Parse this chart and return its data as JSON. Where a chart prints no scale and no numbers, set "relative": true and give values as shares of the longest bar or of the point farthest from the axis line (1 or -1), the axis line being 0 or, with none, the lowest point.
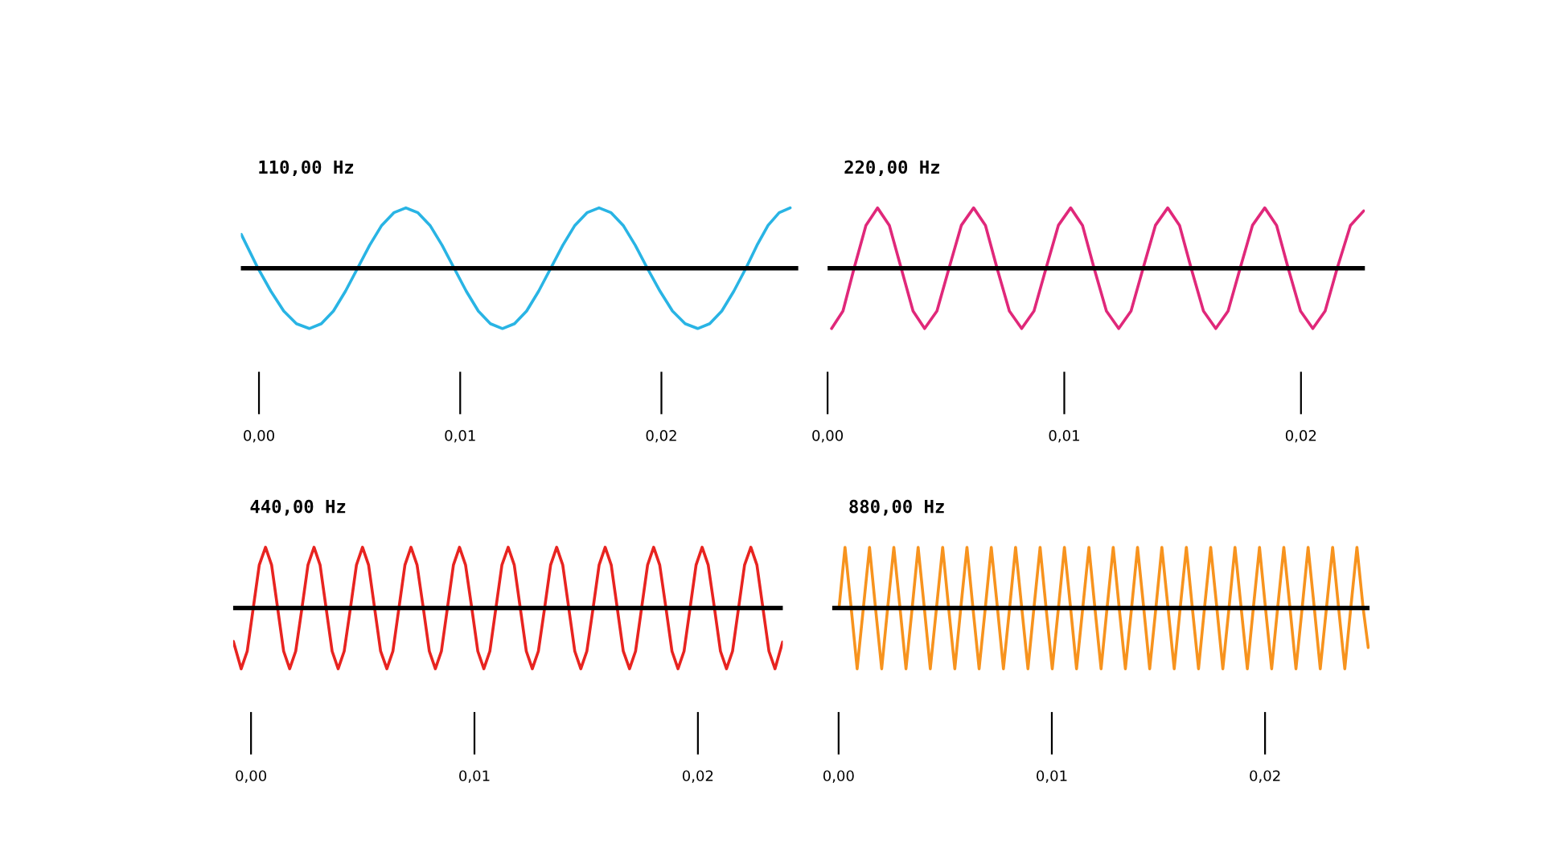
{
  "chart_data": [
    {
      "type": "line",
      "title": "110,00 Hz",
      "relative": true,
      "tick_labels": "x",
      "color": "#29b4e4",
      "xlim": [
        -0.0009,
        0.0268
      ],
      "xticks": [
        {
          "value": 0,
          "label": "0,00"
        },
        {
          "value": 0.01,
          "label": "0,01"
        },
        {
          "value": 0.02,
          "label": "0,02"
        }
      ],
      "ref_lines": [
        {
          "axis": "y",
          "value": 0,
          "color": "#000000"
        }
      ],
      "x": [
        -0.00088,
        -5e-05,
        0.00059,
        0.00123,
        0.00186,
        0.0025,
        0.0031,
        0.0037,
        0.0043,
        0.0049,
        0.0055,
        0.0061,
        0.0067,
        0.0073,
        0.0079,
        0.0085,
        0.0091,
        0.0097,
        0.0103,
        0.0109,
        0.0115,
        0.0121,
        0.0127,
        0.0133,
        0.0139,
        0.0145,
        0.0151,
        0.0157,
        0.0163,
        0.0169,
        0.0175,
        0.0181,
        0.0187,
        0.0193,
        0.01993,
        0.02055,
        0.02118,
        0.0218,
        0.0224,
        0.023,
        0.0236,
        0.0242,
        0.02475,
        0.0253,
        0.02585,
        0.0264
      ],
      "values": [
        0.56,
        0,
        -0.38,
        -0.71,
        -0.92,
        -1,
        -0.92,
        -0.71,
        -0.38,
        0,
        0.38,
        0.71,
        0.92,
        1,
        0.92,
        0.71,
        0.38,
        0,
        -0.38,
        -0.71,
        -0.92,
        -1,
        -0.92,
        -0.71,
        -0.38,
        0,
        0.38,
        0.71,
        0.92,
        1,
        0.92,
        0.71,
        0.38,
        0,
        -0.38,
        -0.71,
        -0.92,
        -1,
        -0.92,
        -0.71,
        -0.38,
        0,
        0.38,
        0.71,
        0.92,
        1
      ]
    },
    {
      "type": "line",
      "title": "220,00 Hz",
      "relative": true,
      "tick_labels": "x",
      "color": "#e0287a",
      "xlim": [
        0,
        0.0227
      ],
      "xticks": [
        {
          "value": 0,
          "label": "0,00"
        },
        {
          "value": 0.01,
          "label": "0,01"
        },
        {
          "value": 0.02,
          "label": "0,02"
        }
      ],
      "ref_lines": [
        {
          "axis": "y",
          "value": 0,
          "color": "#000000"
        }
      ],
      "x": [
        0.00017,
        0.00065,
        0.00112,
        0.00162,
        0.00211,
        0.00261,
        0.00311,
        0.00361,
        0.0041,
        0.00462,
        0.00513,
        0.00565,
        0.00617,
        0.00667,
        0.00716,
        0.00768,
        0.0082,
        0.00872,
        0.00923,
        0.00975,
        0.01027,
        0.01077,
        0.01126,
        0.01178,
        0.0123,
        0.01282,
        0.01333,
        0.01385,
        0.01437,
        0.01487,
        0.01536,
        0.01588,
        0.0164,
        0.01692,
        0.01743,
        0.01795,
        0.01847,
        0.01897,
        0.01946,
        0.01998,
        0.0205,
        0.02102,
        0.02153,
        0.02209,
        0.02265
      ],
      "values": [
        -1,
        -0.71,
        0,
        0.71,
        1,
        0.71,
        0,
        -0.71,
        -1,
        -0.71,
        0,
        0.71,
        1,
        0.71,
        0,
        -0.71,
        -1,
        -0.71,
        0,
        0.71,
        1,
        0.71,
        0,
        -0.71,
        -1,
        -0.71,
        0,
        0.71,
        1,
        0.71,
        0,
        -0.71,
        -1,
        -0.71,
        0,
        0.71,
        1,
        0.71,
        0,
        -0.71,
        -1,
        -0.71,
        0,
        0.71,
        0.95
      ]
    },
    {
      "type": "line",
      "title": "440,00 Hz",
      "relative": true,
      "tick_labels": "x",
      "color": "#e82420",
      "xlim": [
        -0.0008,
        0.0238
      ],
      "xticks": [
        {
          "value": 0,
          "label": "0,00"
        },
        {
          "value": 0.01,
          "label": "0,01"
        },
        {
          "value": 0.02,
          "label": "0,02"
        }
      ],
      "ref_lines": [
        {
          "axis": "y",
          "value": 0,
          "color": "#000000"
        }
      ],
      "x": [
        -0.00079,
        -0.00044,
        -0.00017,
        0.0001,
        0.00037,
        0.00065,
        0.00092,
        0.00119,
        0.00146,
        0.00173,
        0.002,
        0.00228,
        0.00255,
        0.00282,
        0.00309,
        0.00336,
        0.00363,
        0.0039,
        0.00417,
        0.00445,
        0.00472,
        0.00499,
        0.00526,
        0.00553,
        0.0058,
        0.00608,
        0.00635,
        0.00662,
        0.00689,
        0.00716,
        0.00743,
        0.00771,
        0.00798,
        0.00825,
        0.00852,
        0.00879,
        0.00906,
        0.00933,
        0.0096,
        0.00988,
        0.01015,
        0.01042,
        0.01069,
        0.01096,
        0.01123,
        0.01151,
        0.01178,
        0.01205,
        0.01232,
        0.01259,
        0.01286,
        0.01314,
        0.01341,
        0.01368,
        0.01395,
        0.01422,
        0.01449,
        0.01476,
        0.01503,
        0.01531,
        0.01558,
        0.01585,
        0.01612,
        0.01639,
        0.01666,
        0.01694,
        0.01721,
        0.01748,
        0.01775,
        0.01802,
        0.01829,
        0.01857,
        0.01884,
        0.01911,
        0.01938,
        0.01965,
        0.01992,
        0.02019,
        0.02046,
        0.02074,
        0.02101,
        0.02128,
        0.02155,
        0.02182,
        0.02209,
        0.02237,
        0.02264,
        0.02291,
        0.02318,
        0.02345,
        0.02379
      ],
      "values": [
        -0.55,
        -1,
        -0.71,
        0,
        0.71,
        1,
        0.71,
        0,
        -0.71,
        -1,
        -0.71,
        0,
        0.71,
        1,
        0.71,
        0,
        -0.71,
        -1,
        -0.71,
        0,
        0.71,
        1,
        0.71,
        0,
        -0.71,
        -1,
        -0.71,
        0,
        0.71,
        1,
        0.71,
        0,
        -0.71,
        -1,
        -0.71,
        0,
        0.71,
        1,
        0.71,
        0,
        -0.71,
        -1,
        -0.71,
        0,
        0.71,
        1,
        0.71,
        0,
        -0.71,
        -1,
        -0.71,
        0,
        0.71,
        1,
        0.71,
        0,
        -0.71,
        -1,
        -0.71,
        0,
        0.71,
        1,
        0.71,
        0,
        -0.71,
        -1,
        -0.71,
        0,
        0.71,
        1,
        0.71,
        0,
        -0.71,
        -1,
        -0.71,
        0,
        0.71,
        1,
        0.71,
        0,
        -0.71,
        -1,
        -0.71,
        0,
        0.71,
        1,
        0.71,
        0,
        -0.71,
        -1,
        -0.56
      ]
    },
    {
      "type": "line",
      "title": "880,00 Hz",
      "relative": true,
      "tick_labels": "x",
      "color": "#f7931e",
      "xlim": [
        -0.0003,
        0.0249
      ],
      "xticks": [
        {
          "value": 0,
          "label": "0,00"
        },
        {
          "value": 0.01,
          "label": "0,01"
        },
        {
          "value": 0.02,
          "label": "0,02"
        }
      ],
      "ref_lines": [
        {
          "axis": "y",
          "value": 0,
          "color": "#000000"
        }
      ],
      "x": [
        2e-05,
        0.0003,
        0.00059,
        0.00087,
        0.00116,
        0.00145,
        0.00173,
        0.00202,
        0.0023,
        0.00259,
        0.00288,
        0.00316,
        0.00345,
        0.00373,
        0.00402,
        0.0043,
        0.00459,
        0.00488,
        0.00516,
        0.00545,
        0.00573,
        0.00602,
        0.0063,
        0.00659,
        0.00688,
        0.00716,
        0.00745,
        0.00773,
        0.00802,
        0.0083,
        0.00859,
        0.00888,
        0.00916,
        0.00945,
        0.00973,
        0.01002,
        0.01031,
        0.01059,
        0.01088,
        0.01116,
        0.01145,
        0.01174,
        0.01202,
        0.01231,
        0.01259,
        0.01288,
        0.01316,
        0.01345,
        0.01374,
        0.01402,
        0.01431,
        0.01459,
        0.01488,
        0.01516,
        0.01545,
        0.01574,
        0.01602,
        0.01631,
        0.01659,
        0.01688,
        0.01716,
        0.01745,
        0.01774,
        0.01802,
        0.01831,
        0.01859,
        0.01888,
        0.01917,
        0.01945,
        0.01974,
        0.02002,
        0.02031,
        0.02059,
        0.02088,
        0.02117,
        0.02145,
        0.02174,
        0.02202,
        0.02231,
        0.02259,
        0.02288,
        0.02317,
        0.02345,
        0.02374,
        0.02402,
        0.02431,
        0.0246,
        0.02484
      ],
      "values": [
        0,
        1,
        0,
        -1,
        0,
        1,
        0,
        -1,
        0,
        1,
        0,
        -1,
        0,
        1,
        0,
        -1,
        0,
        1,
        0,
        -1,
        0,
        1,
        0,
        -1,
        0,
        1,
        0,
        -1,
        0,
        1,
        0,
        -1,
        0,
        1,
        0,
        -1,
        0,
        1,
        0,
        -1,
        0,
        1,
        0,
        -1,
        0,
        1,
        0,
        -1,
        0,
        1,
        0,
        -1,
        0,
        1,
        0,
        -1,
        0,
        1,
        0,
        -1,
        0,
        1,
        0,
        -1,
        0,
        1,
        0,
        -1,
        0,
        1,
        0,
        -1,
        0,
        1,
        0,
        -1,
        0,
        1,
        0,
        -1,
        0,
        1,
        0,
        -1,
        0,
        1,
        0,
        -0.65
      ]
    }
  ]
}
